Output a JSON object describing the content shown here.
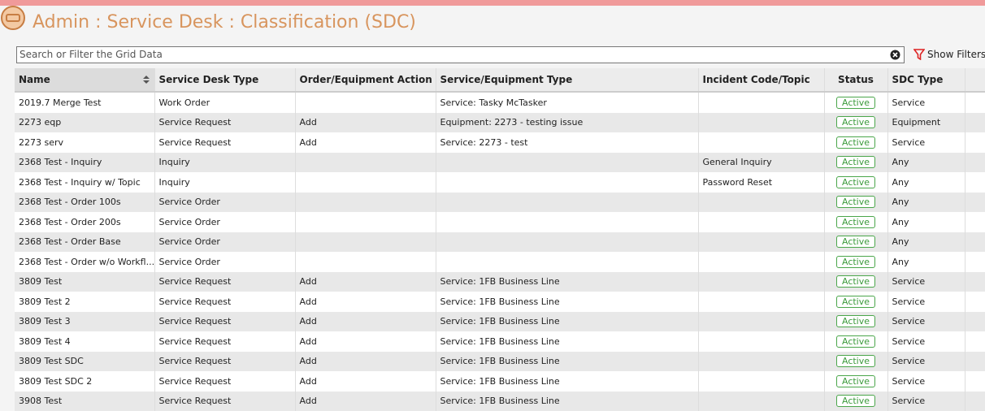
{
  "header": {
    "title": "Admin : Service Desk : Classification (SDC)"
  },
  "search": {
    "placeholder": "Search or Filter the Grid Data",
    "filter_button": "Show Filters"
  },
  "table": {
    "columns": [
      "Name",
      "Service Desk Type",
      "Order/Equipment Action",
      "Service/Equipment Type",
      "Incident Code/Topic",
      "Status",
      "SDC Type"
    ],
    "rows": [
      [
        "2019.7 Merge Test",
        "Work Order",
        null,
        "Service: Tasky McTasker",
        null,
        "Active",
        "Service"
      ],
      [
        "2273 eqp",
        "Service Request",
        "Add",
        "Equipment: 2273 - testing issue",
        null,
        "Active",
        "Equipment"
      ],
      [
        "2273 serv",
        "Service Request",
        "Add",
        "Service: 2273 - test",
        null,
        "Active",
        "Service"
      ],
      [
        "2368 Test - Inquiry",
        "Inquiry",
        null,
        null,
        "General Inquiry",
        "Active",
        "Any"
      ],
      [
        "2368 Test - Inquiry w/ Topic",
        "Inquiry",
        null,
        null,
        "Password Reset",
        "Active",
        "Any"
      ],
      [
        "2368 Test - Order 100s",
        "Service Order",
        null,
        null,
        null,
        "Active",
        "Any"
      ],
      [
        "2368 Test - Order 200s",
        "Service Order",
        null,
        null,
        null,
        "Active",
        "Any"
      ],
      [
        "2368 Test - Order Base",
        "Service Order",
        null,
        null,
        null,
        "Active",
        "Any"
      ],
      [
        "2368 Test - Order w/o Workfl...",
        "Service Order",
        null,
        null,
        null,
        "Active",
        "Any"
      ],
      [
        "3809 Test",
        "Service Request",
        "Add",
        "Service: 1FB Business Line",
        null,
        "Active",
        "Service"
      ],
      [
        "3809 Test 2",
        "Service Request",
        "Add",
        "Service: 1FB Business Line",
        null,
        "Active",
        "Service"
      ],
      [
        "3809 Test 3",
        "Service Request",
        "Add",
        "Service: 1FB Business Line",
        null,
        "Active",
        "Service"
      ],
      [
        "3809 Test 4",
        "Service Request",
        "Add",
        "Service: 1FB Business Line",
        null,
        "Active",
        "Service"
      ],
      [
        "3809 Test SDC",
        "Service Request",
        "Add",
        "Service: 1FB Business Line",
        null,
        "Active",
        "Service"
      ],
      [
        "3809 Test SDC 2",
        "Service Request",
        "Add",
        "Service: 1FB Business Line",
        null,
        "Active",
        "Service"
      ],
      [
        "3908 Test",
        "Service Request",
        "Add",
        "Service: 1FB Business Line",
        null,
        "Active",
        "Service"
      ]
    ]
  }
}
